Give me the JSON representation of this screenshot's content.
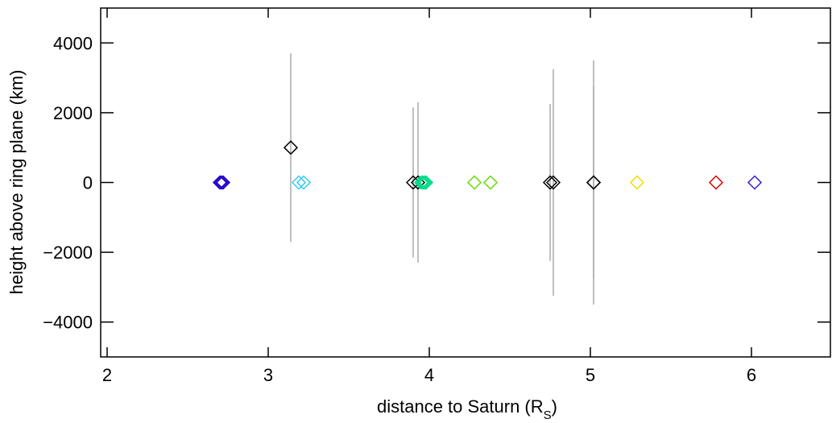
{
  "chart_data": {
    "type": "scatter",
    "xlabel": [
      "distance to Saturn (R",
      "S",
      ")"
    ],
    "ylabel": "height above ring plane (km)",
    "xlim": [
      1.96,
      6.49
    ],
    "xticks": [
      2,
      3,
      4,
      5,
      6
    ],
    "ylim": [
      -5000,
      5000
    ],
    "yticks": [
      {
        "value": -4000,
        "label": "−4000"
      },
      {
        "value": -2000,
        "label": "−2000"
      },
      0,
      2000,
      4000
    ],
    "error_color": "#aaaaaa",
    "series": [
      {
        "color": "#2200cc",
        "x": [
          2.7,
          2.71,
          2.72
        ],
        "values": [
          0,
          0,
          0
        ]
      },
      {
        "color": "#000000",
        "x": [
          3.14,
          3.9,
          3.93,
          4.75,
          4.77,
          5.02,
          5.02
        ],
        "values": [
          1000,
          0,
          0,
          0,
          0,
          0,
          0
        ],
        "errors": [
          2700,
          2150,
          2300,
          2250,
          3250,
          3500,
          2750
        ]
      },
      {
        "color": "#33ccee",
        "x": [
          3.19,
          3.22
        ],
        "values": [
          0,
          0
        ]
      },
      {
        "color": "#00dd88",
        "x": [
          3.95,
          3.96,
          3.97,
          3.98
        ],
        "values": [
          0,
          0,
          0,
          0
        ]
      },
      {
        "color": "#66dd00",
        "x": [
          4.28,
          4.38
        ],
        "values": [
          0,
          0
        ]
      },
      {
        "color": "#eedd00",
        "x": [
          5.29
        ],
        "values": [
          0
        ]
      },
      {
        "color": "#dd0000",
        "x": [
          5.78
        ],
        "values": [
          0
        ]
      },
      {
        "color": "#3322cc",
        "x": [
          6.02
        ],
        "values": [
          0
        ]
      }
    ]
  }
}
